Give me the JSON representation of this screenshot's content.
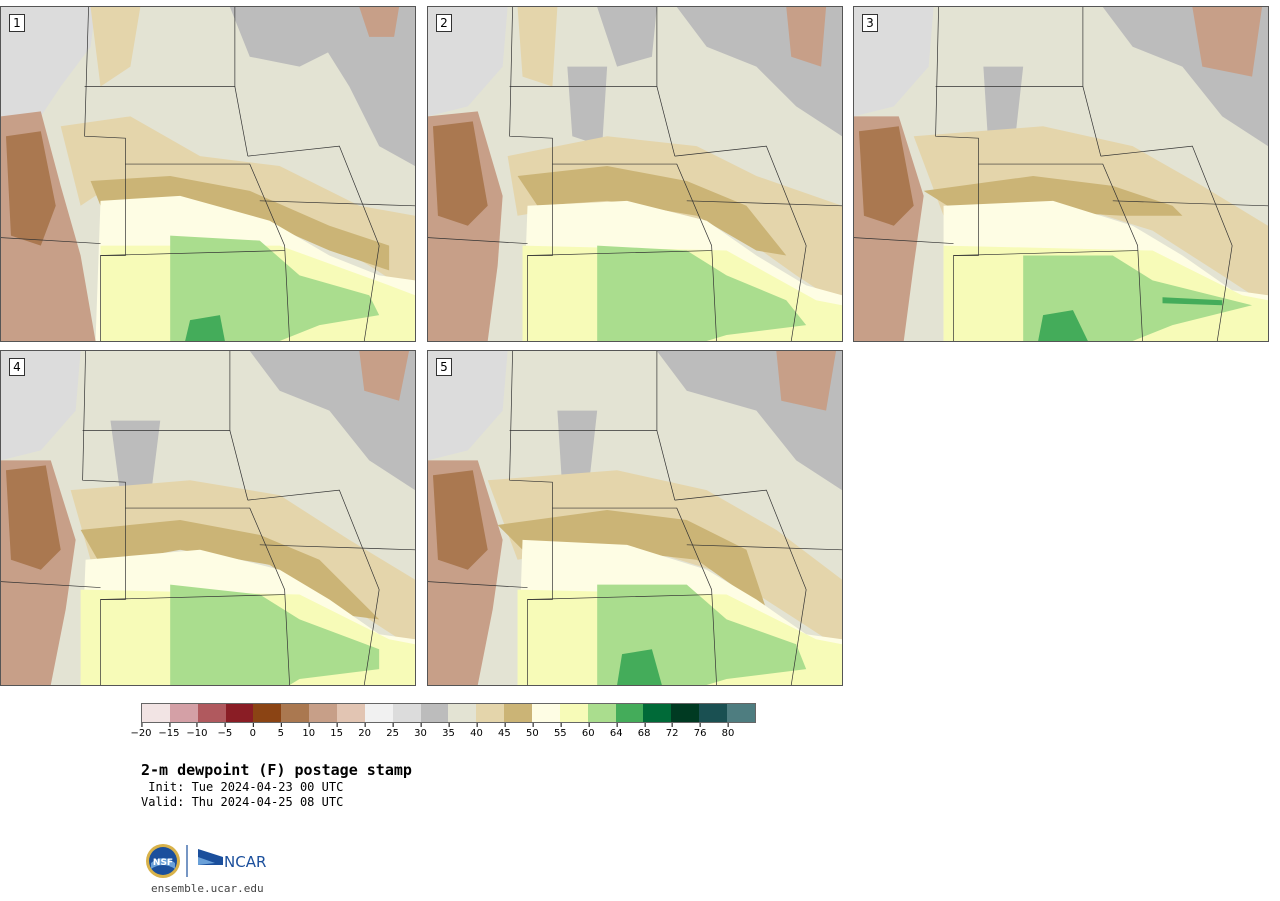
{
  "panels": [
    {
      "label": "1"
    },
    {
      "label": "2"
    },
    {
      "label": "3"
    },
    {
      "label": "4"
    },
    {
      "label": "5"
    }
  ],
  "colorbar": {
    "colors": [
      "#f2e4e4",
      "#d4a0a6",
      "#b0595e",
      "#8a1d25",
      "#8b4414",
      "#aa7850",
      "#c79f88",
      "#e2c5b3",
      "#f1f1f1",
      "#dcdcdc",
      "#bcbcbc",
      "#e3e3d3",
      "#e4d5ab",
      "#cbb476",
      "#fefde4",
      "#f7fbb8",
      "#aadd8e",
      "#44ac5a",
      "#006a38",
      "#003a22",
      "#1a5052",
      "#4e7d80"
    ],
    "ticks": [
      "−20",
      "−15",
      "−10",
      "−5",
      "0",
      "5",
      "10",
      "15",
      "20",
      "25",
      "30",
      "35",
      "40",
      "45",
      "50",
      "55",
      "60",
      "64",
      "68",
      "72",
      "76",
      "80"
    ]
  },
  "title": "2-m dewpoint (F) postage stamp",
  "init": " Init: Tue 2024-04-23 00 UTC",
  "valid": "Valid: Thu 2024-04-25 08 UTC",
  "logo": {
    "left_icon": "nsf-logo",
    "right_text": "NCAR",
    "right_icon": "ncar-logo"
  },
  "website": "ensemble.ucar.edu"
}
